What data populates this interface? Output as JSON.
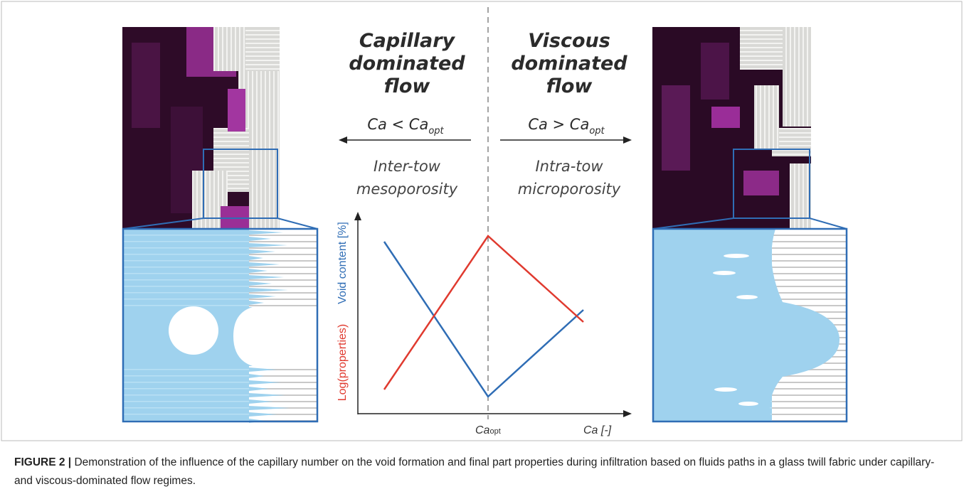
{
  "left_panel": {
    "title": [
      "Capillary",
      "dominated",
      "flow"
    ],
    "condition": "Ca < Ca",
    "condition_subscript": "opt",
    "porosity": [
      "Inter-tow",
      "mesoporosity"
    ]
  },
  "right_panel": {
    "title": [
      "Viscous",
      "dominated",
      "flow"
    ],
    "condition": "Ca > Ca",
    "condition_subscript": "opt",
    "porosity": [
      "Intra-tow",
      "microporosity"
    ]
  },
  "chart": {
    "y_label_blue": "Void content [%]",
    "y_label_red": "Log(properties)",
    "x_marker": "Ca",
    "x_marker_subscript": "opt",
    "x_label": "Ca [-]"
  },
  "caption": {
    "label": "FIGURE 2 |",
    "text": "Demonstration of the influence of the capillary number on the void formation and final part properties during infiltration based on fluids paths in a glass twill fabric under capillary- and viscous-dominated flow regimes."
  }
}
